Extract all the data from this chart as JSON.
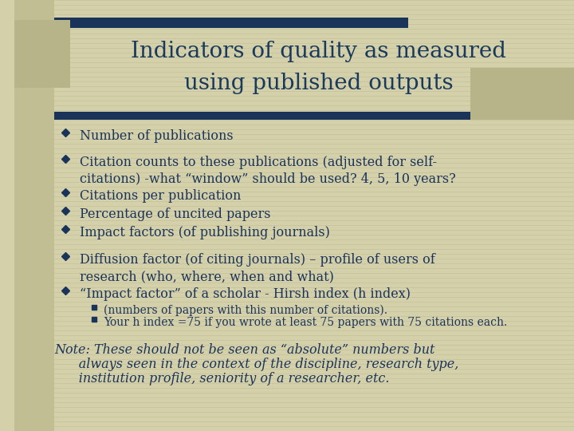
{
  "title_line1": "Indicators of quality as measured",
  "title_line2": "using published outputs",
  "title_color": "#1a3a5c",
  "title_fontsize": 20,
  "bg_color": "#d4d0aa",
  "left_col_color": "#c2be94",
  "navy_color": "#1a3358",
  "tan_accent_color": "#b8b48a",
  "bullet_items": [
    "Number of publications",
    "Citation counts to these publications (adjusted for self-\ncitations) -what “window” should be used? 4, 5, 10 years?",
    "Citations per publication",
    "Percentage of uncited papers",
    "Impact factors (of publishing journals)",
    "Diffusion factor (of citing journals) – profile of users of\nresearch (who, where, when and what)",
    "“Impact factor” of a scholar - Hirsh index (h index)"
  ],
  "sub_bullets": [
    "(numbers of papers with this number of citations).",
    "Your h index =75 if you wrote at least 75 papers with 75 citations each."
  ],
  "note_line1": "Note: These should not be seen as “absolute” numbers but",
  "note_line2": "      always seen in the context of the discipline, research type,",
  "note_line3": "      institution profile, seniority of a researcher, etc.",
  "text_color": "#1a3358",
  "bullet_fontsize": 11.5,
  "sub_bullet_fontsize": 10.0,
  "note_fontsize": 11.5
}
